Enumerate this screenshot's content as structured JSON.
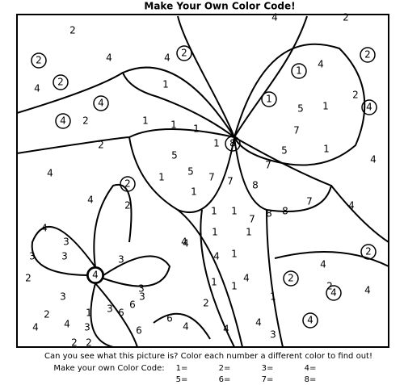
{
  "header": {
    "title": "Make Your Own Color Code!"
  },
  "picture": {
    "labels": [
      2,
      4,
      2,
      2,
      4,
      4,
      2,
      4,
      2,
      1,
      1,
      4,
      2,
      4,
      4,
      2,
      1,
      1,
      1,
      1,
      8,
      1,
      5,
      1,
      2,
      4,
      7,
      1,
      5,
      7,
      4,
      2,
      4,
      5,
      1,
      5,
      7,
      7,
      8,
      2,
      4,
      8,
      8,
      7,
      1,
      1,
      1,
      1,
      4,
      2,
      4,
      1,
      7,
      1,
      4,
      3,
      3,
      3,
      1,
      4,
      1,
      3,
      2,
      4,
      3,
      3,
      3,
      1,
      2,
      4,
      3,
      6,
      6,
      6,
      6,
      4,
      2,
      4,
      4,
      2,
      4,
      3,
      4,
      2,
      4,
      2,
      4,
      3,
      4,
      4,
      4,
      2,
      1,
      2
    ]
  },
  "footer": {
    "question": "Can you see what this picture is?  Color each number a different color to find out!",
    "code_label": "Make your own Color Code:",
    "code": [
      "1=",
      "2=",
      "3=",
      "4=",
      "5=",
      "6=",
      "7=",
      "8="
    ]
  }
}
